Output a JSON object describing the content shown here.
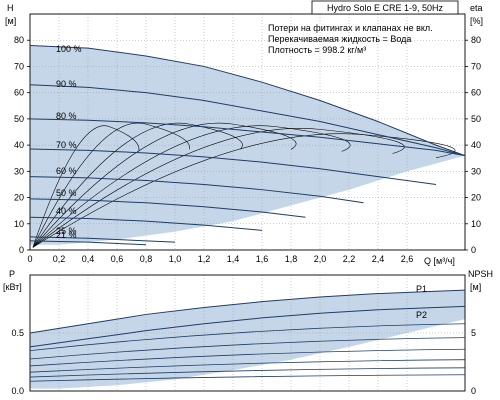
{
  "chart_data": [
    {
      "type": "line",
      "title": "Hydro Solo E CRE 1-9, 50Hz",
      "notes": [
        "Потери на фитингах и клапанах не вкл.",
        "Перекачиваемая жидкость = Вода",
        "Плотность = 998.2 кг/м³"
      ],
      "xlabel": "Q [м³/ч]",
      "ylabel_left": "H",
      "ylabel_left_unit": "[м]",
      "ylabel_right": "eta",
      "ylabel_right_unit": "[%]",
      "xlim": [
        0,
        3.0
      ],
      "ylim": [
        0,
        90
      ],
      "x_ticks": [
        "0",
        "0,2",
        "0,4",
        "0,6",
        "0,8",
        "1,0",
        "1,2",
        "1,4",
        "1,6",
        "1,8",
        "2,0",
        "2,2",
        "2,4",
        "2,6"
      ],
      "y_ticks_left": [
        "0",
        "10",
        "20",
        "30",
        "40",
        "50",
        "60",
        "70",
        "80"
      ],
      "y_ticks_right": [
        "0",
        "10",
        "20",
        "30",
        "40",
        "50",
        "60",
        "70",
        "80"
      ],
      "grid": true,
      "shaded_region_color": "#c5d6e8",
      "curve_color": "#1f3c66",
      "series": [
        {
          "name": "100 %",
          "x": [
            0,
            0.4,
            0.8,
            1.2,
            1.6,
            2.0,
            2.4,
            2.8,
            3.0
          ],
          "y": [
            78,
            77,
            74,
            70,
            64,
            57,
            49,
            40,
            36
          ]
        },
        {
          "name": "90 %",
          "x": [
            0,
            0.4,
            0.8,
            1.2,
            1.6,
            2.0,
            2.4,
            2.8,
            3.0
          ],
          "y": [
            63,
            62,
            60,
            57,
            53,
            49,
            44,
            39,
            36
          ]
        },
        {
          "name": "80 %",
          "x": [
            0,
            0.4,
            0.8,
            1.2,
            1.6,
            2.0,
            2.4,
            2.8,
            3.0
          ],
          "y": [
            50,
            49.5,
            48.5,
            47,
            45,
            43,
            40.5,
            38,
            36
          ]
        },
        {
          "name": "70 %",
          "x": [
            0,
            0.4,
            0.8,
            1.2,
            1.6,
            2.0,
            2.4,
            2.8
          ],
          "y": [
            38.5,
            38,
            37,
            35.5,
            33.5,
            31,
            28,
            25
          ]
        },
        {
          "name": "60 %",
          "x": [
            0,
            0.4,
            0.8,
            1.2,
            1.6,
            2.0,
            2.3
          ],
          "y": [
            28,
            27.5,
            26.5,
            25,
            23,
            20.5,
            18
          ]
        },
        {
          "name": "50 %",
          "x": [
            0,
            0.4,
            0.8,
            1.2,
            1.6,
            1.9
          ],
          "y": [
            19.5,
            19,
            18,
            16.5,
            14.5,
            12.5
          ]
        },
        {
          "name": "40 %",
          "x": [
            0,
            0.4,
            0.8,
            1.2,
            1.6
          ],
          "y": [
            12.5,
            12,
            11,
            9.5,
            7.5
          ]
        },
        {
          "name": "25 %",
          "x": [
            0,
            0.4,
            0.8,
            1.0
          ],
          "y": [
            5,
            4.5,
            3.5,
            3
          ]
        },
        {
          "name": "21 %",
          "x": [
            0,
            0.4,
            0.8
          ],
          "y": [
            3.5,
            3,
            2
          ]
        }
      ]
    },
    {
      "type": "line",
      "xlabel": "Q [м³/ч]",
      "ylabel_left": "P",
      "ylabel_left_unit": "[кВт]",
      "ylabel_right": "NPSH",
      "ylabel_right_unit": "[м]",
      "xlim": [
        0,
        3.0
      ],
      "ylim": [
        0,
        1.0
      ],
      "y_ticks_left": [
        "0.0",
        "0.5"
      ],
      "y_ticks_right": [
        "0",
        "5"
      ],
      "grid": true,
      "series": [
        {
          "name": "P1",
          "x": [
            0,
            0.4,
            0.8,
            1.2,
            1.6,
            2.0,
            2.4,
            2.8,
            3.0
          ],
          "y": [
            0.5,
            0.58,
            0.66,
            0.72,
            0.77,
            0.81,
            0.84,
            0.86,
            0.87
          ]
        },
        {
          "name": "P2",
          "x": [
            0,
            0.4,
            0.8,
            1.2,
            1.6,
            2.0,
            2.4,
            2.8,
            3.0
          ],
          "y": [
            0.38,
            0.45,
            0.52,
            0.58,
            0.63,
            0.67,
            0.7,
            0.72,
            0.73
          ]
        }
      ]
    }
  ]
}
